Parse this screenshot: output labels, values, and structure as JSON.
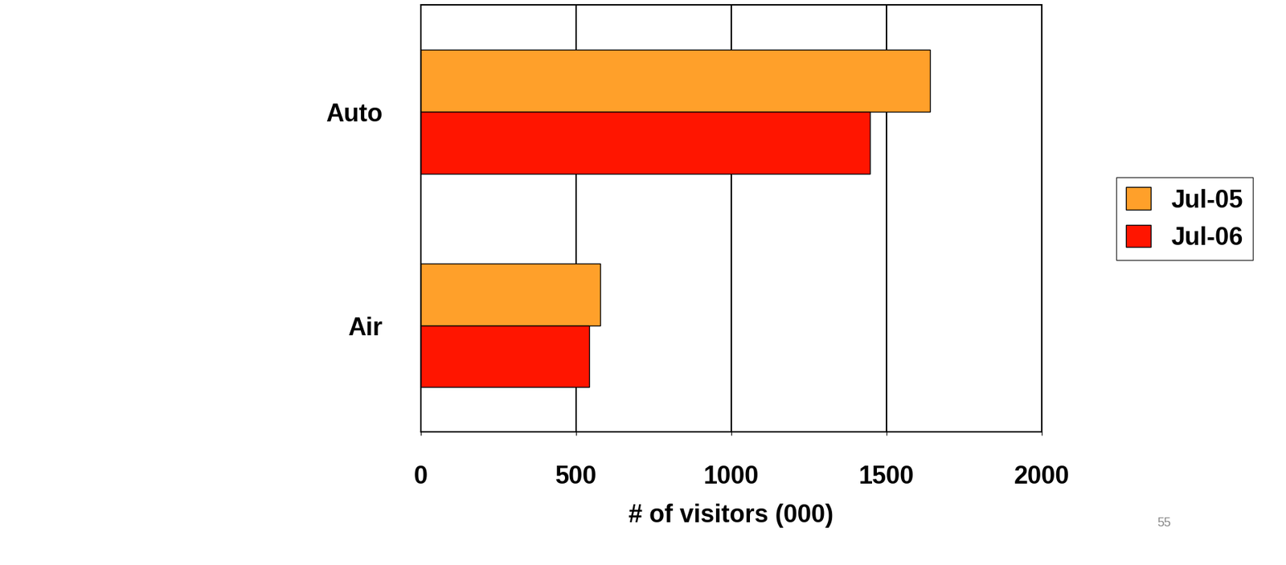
{
  "chart_data": {
    "type": "bar",
    "orientation": "horizontal",
    "categories": [
      "Auto",
      "Air"
    ],
    "series": [
      {
        "name": "Jul-05",
        "color": "#FFA02A",
        "values": [
          1640,
          578
        ]
      },
      {
        "name": "Jul-06",
        "color": "#FF1500",
        "values": [
          1448,
          543
        ]
      }
    ],
    "x_label": "# of visitors (000)",
    "xlim": [
      0,
      2000
    ],
    "xticks": [
      0,
      500,
      1000,
      1500,
      2000
    ],
    "grid": true,
    "legend": "right",
    "annotations": [
      "55"
    ]
  }
}
